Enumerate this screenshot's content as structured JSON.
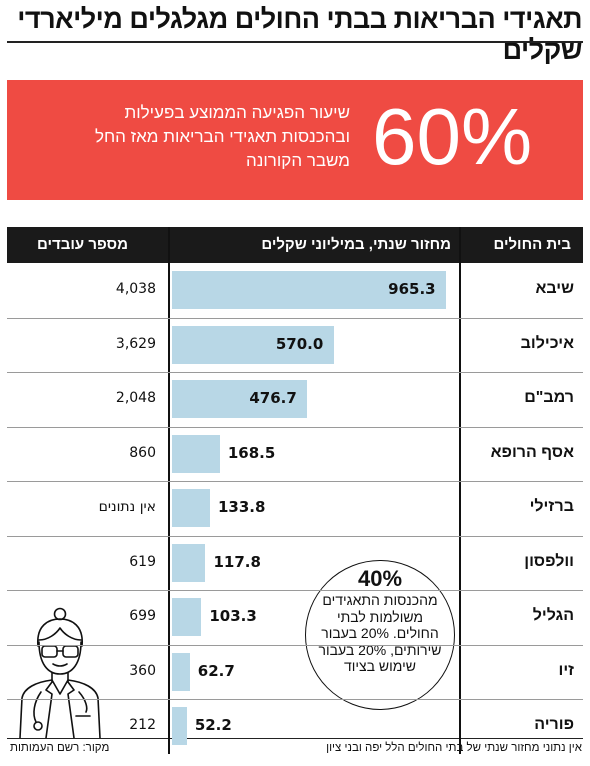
{
  "title": "תאגידי הבריאות בבתי החולים מגלגלים מיליארדי שקלים",
  "banner": {
    "percent": "60%",
    "text": "שיעור הפגיעה הממוצע בפעילות ובהכנסות תאגידי הבריאות מאז החל משבר הקורונה"
  },
  "table": {
    "col_hospital": "בית החולים",
    "col_revenue": "מחזור שנתי, במיליוני שקלים",
    "col_employees": "מספר עובדים"
  },
  "chart_data": {
    "type": "bar",
    "orientation": "horizontal",
    "categories": [
      "שיבא",
      "איכילוב",
      "רמב\"ם",
      "אסף הרופא",
      "ברזילי",
      "וולפסון",
      "הגליל",
      "זיו",
      "פוריה"
    ],
    "values": [
      965.3,
      570.0,
      476.7,
      168.5,
      133.8,
      117.8,
      103.3,
      62.7,
      52.2
    ],
    "value_labels": [
      "965.3",
      "570.0",
      "476.7",
      "168.5",
      "133.8",
      "117.8",
      "103.3",
      "62.7",
      "52.2"
    ],
    "employees": [
      "4,038",
      "3,629",
      "2,048",
      "860",
      "אין נתונים",
      "619",
      "699",
      "360",
      "212"
    ],
    "xlabel": "מחזור שנתי, במיליוני שקלים",
    "xlim": [
      0,
      1000
    ],
    "bar_color": "#b8d7e6"
  },
  "callout": {
    "percent": "40%",
    "text": "מהכנסות התאגידים משולמות לבתי החולים. 20% בעבור שירותים, 20% בעבור שימוש בציוד"
  },
  "footnote": "אין נתוני מחזור שנתי של בתי החולים הלל יפה ובני ציון",
  "source": "מקור: רשם העמותות",
  "colors": {
    "banner": "#ef4b43",
    "header": "#1a1a1a",
    "bar": "#b8d7e6"
  },
  "icons": {
    "illustration": "doctor-illustration-icon"
  }
}
